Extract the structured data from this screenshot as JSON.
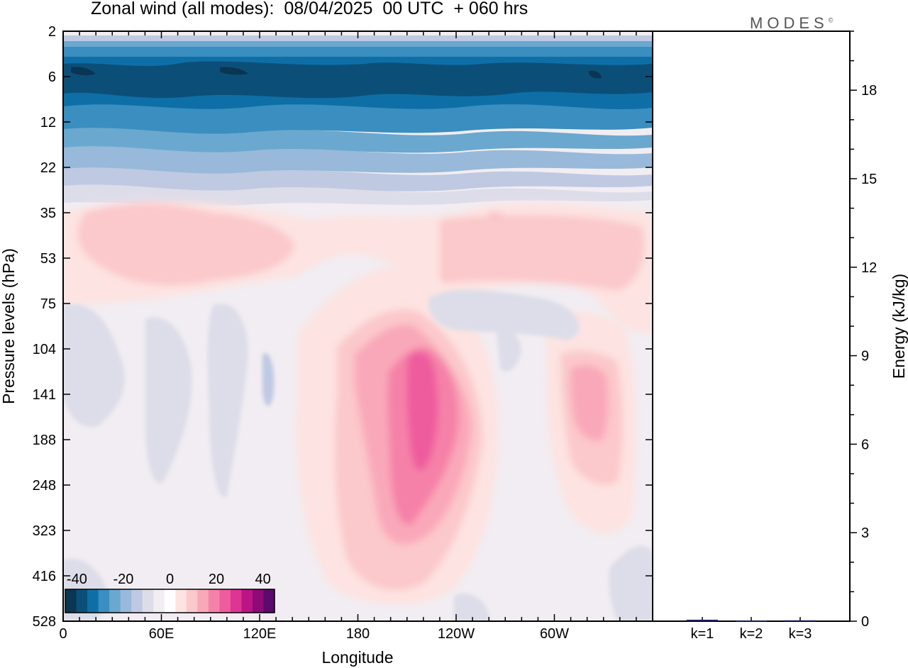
{
  "header": {
    "title": "Zonal wind (all modes):  08/04/2025  00 UTC  + 060 hrs",
    "brand": "MODES",
    "brand_mark": "©"
  },
  "chart_data": [
    {
      "type": "heatmap",
      "title": "Zonal wind (all modes):  08/04/2025  00 UTC  + 060 hrs",
      "xlabel": "Longitude",
      "ylabel": "Pressure levels (hPa)",
      "x_ticks": [
        "0",
        "60E",
        "120E",
        "180",
        "120W",
        "60W"
      ],
      "y_ticks": [
        "2",
        "6",
        "12",
        "22",
        "35",
        "53",
        "75",
        "104",
        "141",
        "188",
        "248",
        "323",
        "416",
        "528"
      ],
      "grid": false,
      "colorbar": {
        "placement": "bottom-left",
        "tick_labels": [
          "-40",
          "-20",
          "0",
          "20",
          "40"
        ],
        "range": [
          -45,
          45
        ],
        "step": 5,
        "colors": [
          "#0a3553",
          "#0b4f79",
          "#0e6fa6",
          "#3a8ec0",
          "#6aa8cf",
          "#98b9d9",
          "#bfc9e2",
          "#dddde9",
          "#f1edf2",
          "#ffffff",
          "#fde3e1",
          "#fbc8cb",
          "#f9a8b9",
          "#f581a8",
          "#ee5c9d",
          "#dd3593",
          "#bb1585",
          "#8e0a76",
          "#5c0a6b"
        ]
      },
      "features": [
        {
          "lon": 0,
          "lon_end": 360,
          "level": "2-6",
          "value": -30
        },
        {
          "lon": 200,
          "level": "141",
          "value": 25
        },
        {
          "lon": 310,
          "level": "141",
          "value": 12
        },
        {
          "lon": 330,
          "level": "53",
          "value": 12
        },
        {
          "lon": 30,
          "level": "53",
          "value": 8
        }
      ]
    },
    {
      "type": "bar",
      "categories": [
        "k=1",
        "k=2",
        "k=3"
      ],
      "values": [
        0.05,
        0.02,
        0.03
      ],
      "ylabel": "Energy (kJ/kg)",
      "y_ticks": [
        "0",
        "3",
        "6",
        "9",
        "12",
        "15",
        "18"
      ],
      "ylim": [
        0,
        20
      ],
      "bar_color": "#1a1f5c"
    }
  ]
}
